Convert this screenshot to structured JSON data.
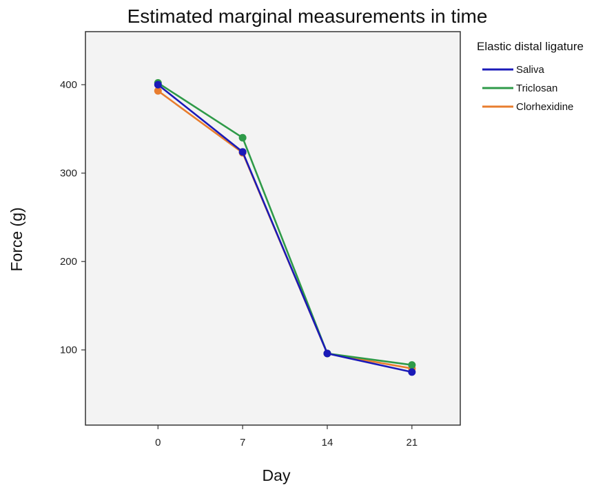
{
  "chart_data": {
    "type": "line",
    "title": "Estimated marginal measurements in time",
    "xlabel": "Day",
    "ylabel": "Force (g)",
    "x": [
      0,
      7,
      14,
      21
    ],
    "x_tick_labels": [
      "0",
      "7",
      "14",
      "21"
    ],
    "y_ticks": [
      100,
      200,
      300,
      400
    ],
    "y_tick_labels": [
      "100",
      "200",
      "300",
      "400"
    ],
    "xlim": [
      -6,
      25
    ],
    "ylim": [
      15,
      460
    ],
    "grid": false,
    "background": "#f3f3f3",
    "legend": {
      "title": "Elastic distal ligature",
      "position": "right"
    },
    "series": [
      {
        "name": "Clorhexidine",
        "color": "#e87d2e",
        "values": [
          393,
          323,
          96,
          79
        ]
      },
      {
        "name": "Triclosan",
        "color": "#2e9a48",
        "values": [
          402,
          340,
          96,
          83
        ]
      },
      {
        "name": "Saliva",
        "color": "#1a1ab8",
        "values": [
          400,
          324,
          96,
          75
        ]
      }
    ],
    "legend_order": [
      "Saliva",
      "Triclosan",
      "Clorhexidine"
    ]
  }
}
